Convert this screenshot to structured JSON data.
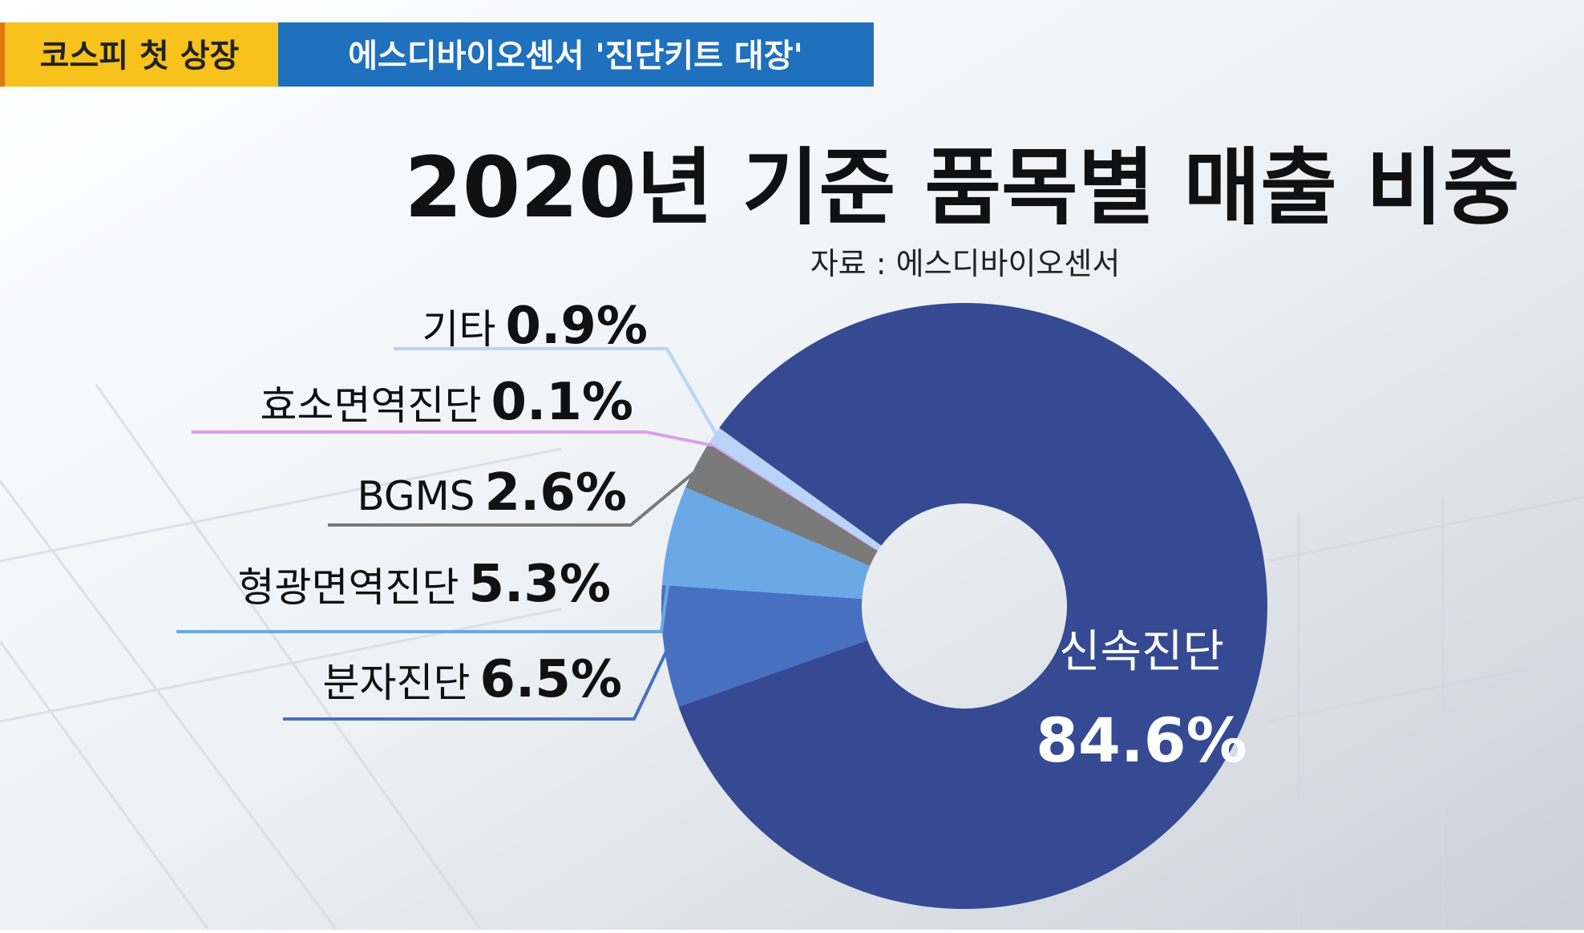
{
  "header": {
    "tag": "코스피 첫 상장",
    "headline": "에스디바이오센서 '진단키트 대장'"
  },
  "chart_data": {
    "type": "donut",
    "title": "2020년 기준 품목별 매출 비중",
    "subtitle": "자료 : 에스디바이오센서",
    "categories": [
      "신속진단",
      "분자진단",
      "형광면역진단",
      "BGMS",
      "효소면역진단",
      "기타"
    ],
    "values": [
      84.6,
      6.5,
      5.3,
      2.6,
      0.1,
      0.9
    ],
    "value_labels": [
      "84.6%",
      "6.5%",
      "5.3%",
      "2.6%",
      "0.1%",
      "0.9%"
    ],
    "colors": [
      "#354a93",
      "#4870c0",
      "#6aa8e6",
      "#7a7a7a",
      "#d9a0e8",
      "#b8d4f8"
    ]
  }
}
